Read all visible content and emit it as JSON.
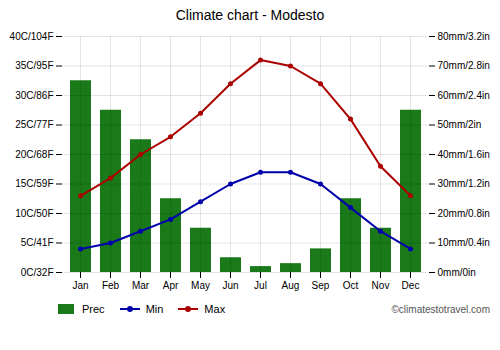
{
  "chart_data": {
    "type": "bar",
    "title": "Climate chart - Modesto",
    "categories": [
      "Jan",
      "Feb",
      "Mar",
      "Apr",
      "May",
      "Jun",
      "Jul",
      "Aug",
      "Sep",
      "Oct",
      "Nov",
      "Dec"
    ],
    "series": [
      {
        "name": "Prec",
        "type": "bar",
        "axis": "y2",
        "color": "#1a7a1a",
        "values": [
          65,
          55,
          45,
          25,
          15,
          5,
          2,
          3,
          8,
          25,
          15,
          55
        ]
      },
      {
        "name": "Min",
        "type": "line",
        "marker": "circle",
        "color": "#0000aa",
        "values": [
          4,
          5,
          7,
          9,
          12,
          15,
          17,
          17,
          15,
          11,
          7,
          4
        ]
      },
      {
        "name": "Max",
        "type": "line",
        "marker": "circle",
        "color": "#aa0000",
        "values": [
          13,
          16,
          20,
          23,
          27,
          32,
          36,
          35,
          32,
          26,
          18,
          13
        ]
      }
    ],
    "ylim": [
      0,
      40
    ],
    "yticks": [
      {
        "value": 0,
        "label": "0C/32F"
      },
      {
        "value": 5,
        "label": "5C/41F"
      },
      {
        "value": 10,
        "label": "10C/50F"
      },
      {
        "value": 15,
        "label": "15C/59F"
      },
      {
        "value": 20,
        "label": "20C/68F"
      },
      {
        "value": 25,
        "label": "25C/77F"
      },
      {
        "value": 30,
        "label": "30C/86F"
      },
      {
        "value": 35,
        "label": "35C/95F"
      },
      {
        "value": 40,
        "label": "40C/104F"
      }
    ],
    "y2lim": [
      0,
      80
    ],
    "y2ticks": [
      {
        "value": 0,
        "label": "0mm/0in"
      },
      {
        "value": 10,
        "label": "10mm/0.4in"
      },
      {
        "value": 20,
        "label": "20mm/0.8in"
      },
      {
        "value": 30,
        "label": "30mm/1.2in"
      },
      {
        "value": 40,
        "label": "40mm/1.6in"
      },
      {
        "value": 50,
        "label": "50mm/2in"
      },
      {
        "value": 60,
        "label": "60mm/2.4in"
      },
      {
        "value": 70,
        "label": "70mm/2.8in"
      },
      {
        "value": 80,
        "label": "80mm/3.2in"
      }
    ],
    "grid": true,
    "legend": "lower left",
    "annotations": [
      "©climatestotravel.com"
    ]
  }
}
